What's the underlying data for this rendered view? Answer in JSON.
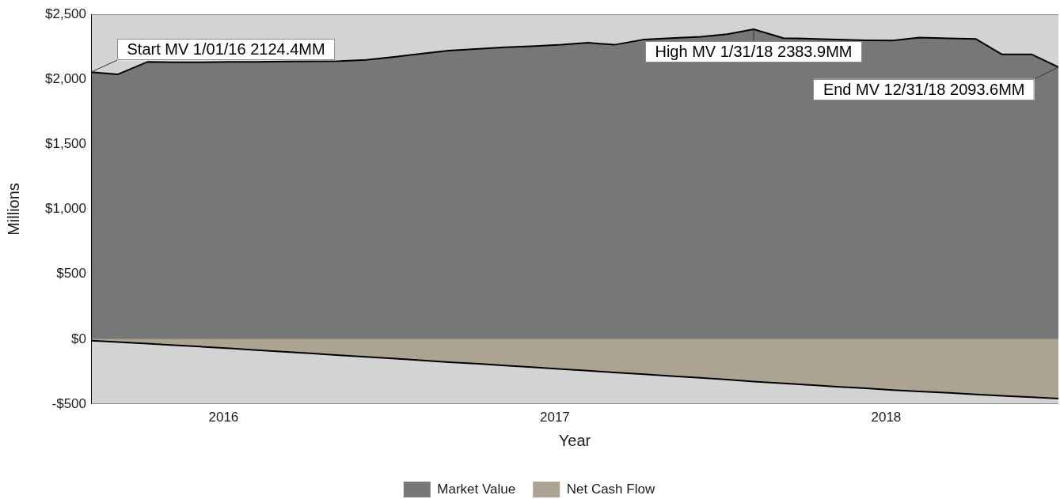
{
  "chart_data": {
    "type": "area",
    "xlabel": "Year",
    "ylabel": "Millions",
    "x": [
      2015.6,
      2015.68,
      2015.77,
      2015.85,
      2015.93,
      2016.02,
      2016.1,
      2016.18,
      2016.27,
      2016.35,
      2016.43,
      2016.52,
      2016.6,
      2016.68,
      2016.77,
      2016.85,
      2016.93,
      2017.02,
      2017.1,
      2017.18,
      2017.27,
      2017.35,
      2017.44,
      2017.52,
      2017.6,
      2017.69,
      2017.77,
      2017.85,
      2017.94,
      2018.02,
      2018.1,
      2018.19,
      2018.27,
      2018.35,
      2018.44,
      2018.52
    ],
    "series": [
      {
        "name": "Market Value",
        "color": "#777777",
        "values": [
          2055,
          2037,
          2133,
          2131,
          2130,
          2133,
          2134,
          2136,
          2138,
          2139,
          2149,
          2173,
          2197,
          2220,
          2234,
          2246,
          2253,
          2265,
          2281,
          2265,
          2306,
          2316,
          2326,
          2346,
          2383.9,
          2316,
          2312,
          2305,
          2299,
          2298,
          2321,
          2315,
          2310,
          2191,
          2191,
          2093.6
        ]
      },
      {
        "name": "Net Cash Flow",
        "color": "#ada393",
        "values": [
          -12,
          -23,
          -35,
          -46,
          -58,
          -71,
          -84,
          -97,
          -110,
          -124,
          -137,
          -150,
          -164,
          -177,
          -190,
          -203,
          -216,
          -230,
          -243,
          -257,
          -270,
          -284,
          -298,
          -312,
          -327,
          -340,
          -353,
          -366,
          -379,
          -392,
          -403,
          -414,
          -425,
          -436,
          -447,
          -458
        ]
      }
    ],
    "xlim": [
      2015.6,
      2018.52
    ],
    "xticks": [
      2016,
      2017,
      2018
    ],
    "ylim": [
      -500,
      2500
    ],
    "yticks": [
      {
        "value": -500,
        "label": "-$500"
      },
      {
        "value": 0,
        "label": "$0"
      },
      {
        "value": 500,
        "label": "$500"
      },
      {
        "value": 1000,
        "label": "$1,000"
      },
      {
        "value": 1500,
        "label": "$1,500"
      },
      {
        "value": 2000,
        "label": "$2,000"
      },
      {
        "value": 2500,
        "label": "$2,500"
      }
    ],
    "annotations": [
      {
        "text": "Start MV 1/01/16 2124.4MM",
        "x": 2015.6,
        "y": 2055
      },
      {
        "text": "High MV 1/31/18 2383.9MM",
        "x": 2017.6,
        "y": 2383.9
      },
      {
        "text": "End MV 12/31/18 2093.6MM",
        "x": 2018.52,
        "y": 2093.6
      }
    ],
    "legend": "bottom",
    "line_style": "solid"
  }
}
